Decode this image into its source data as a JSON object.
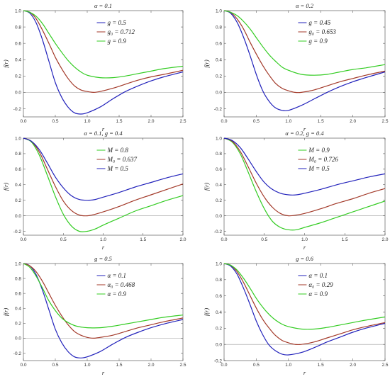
{
  "colors": {
    "blue": "#2222bb",
    "red": "#a33a2a",
    "green": "#33cc22"
  },
  "chart_data": [
    {
      "type": "line",
      "title": "α = 0.1",
      "xlabel": "r",
      "ylabel": "f(r)",
      "xlim": [
        0,
        2.5
      ],
      "ylim": [
        -0.3,
        1.0
      ],
      "xticks": [
        "0.0",
        "0.5",
        "1.0",
        "1.5",
        "2.0",
        "2.5"
      ],
      "yticks": [
        "-0.2",
        "0.0",
        "0.2",
        "0.4",
        "0.6",
        "0.8",
        "1.0"
      ],
      "legend_position": "top-right",
      "series": [
        {
          "name": "g = 0.5",
          "color": "#2222bb",
          "x": [
            0,
            0.1,
            0.2,
            0.3,
            0.4,
            0.5,
            0.6,
            0.7,
            0.8,
            0.9,
            1.0,
            1.2,
            1.4,
            1.6,
            1.8,
            2.0,
            2.2,
            2.5
          ],
          "y": [
            1.0,
            0.97,
            0.85,
            0.64,
            0.38,
            0.12,
            -0.06,
            -0.18,
            -0.25,
            -0.265,
            -0.25,
            -0.18,
            -0.08,
            0.01,
            0.08,
            0.14,
            0.19,
            0.25
          ]
        },
        {
          "name": "g₀ = 0.712",
          "color": "#a33a2a",
          "x": [
            0,
            0.1,
            0.2,
            0.3,
            0.4,
            0.5,
            0.6,
            0.7,
            0.8,
            0.9,
            1.0,
            1.1,
            1.2,
            1.4,
            1.6,
            1.8,
            2.0,
            2.2,
            2.5
          ],
          "y": [
            1.0,
            0.98,
            0.9,
            0.76,
            0.6,
            0.43,
            0.29,
            0.17,
            0.08,
            0.03,
            0.01,
            0.0,
            0.01,
            0.05,
            0.1,
            0.15,
            0.19,
            0.22,
            0.27
          ]
        },
        {
          "name": "g = 0.9",
          "color": "#33cc22",
          "x": [
            0,
            0.1,
            0.2,
            0.3,
            0.4,
            0.5,
            0.6,
            0.7,
            0.8,
            0.9,
            1.0,
            1.2,
            1.4,
            1.6,
            1.8,
            2.0,
            2.2,
            2.5
          ],
          "y": [
            1.0,
            0.98,
            0.93,
            0.84,
            0.72,
            0.6,
            0.49,
            0.39,
            0.31,
            0.25,
            0.21,
            0.18,
            0.18,
            0.2,
            0.23,
            0.26,
            0.29,
            0.32
          ]
        }
      ]
    },
    {
      "type": "line",
      "title": "α = 0.2",
      "xlabel": "r",
      "ylabel": "f(r)",
      "xlim": [
        0,
        2.5
      ],
      "ylim": [
        -0.3,
        1.0
      ],
      "xticks": [
        "0.0",
        "0.5",
        "1.0",
        "1.5",
        "2.0",
        "2.5"
      ],
      "yticks": [
        "-0.2",
        "0.0",
        "0.2",
        "0.4",
        "0.6",
        "0.8",
        "1.0"
      ],
      "legend_position": "top-right",
      "series": [
        {
          "name": "g = 0.45",
          "color": "#2222bb",
          "x": [
            0,
            0.1,
            0.2,
            0.3,
            0.4,
            0.5,
            0.6,
            0.7,
            0.8,
            0.9,
            1.0,
            1.2,
            1.4,
            1.6,
            1.8,
            2.0,
            2.2,
            2.5
          ],
          "y": [
            1.0,
            0.97,
            0.86,
            0.68,
            0.46,
            0.22,
            0.02,
            -0.11,
            -0.19,
            -0.22,
            -0.22,
            -0.16,
            -0.08,
            0.0,
            0.07,
            0.13,
            0.18,
            0.25
          ]
        },
        {
          "name": "g₀ = 0.653",
          "color": "#a33a2a",
          "x": [
            0,
            0.1,
            0.2,
            0.3,
            0.4,
            0.5,
            0.6,
            0.7,
            0.8,
            0.9,
            1.0,
            1.1,
            1.2,
            1.4,
            1.6,
            1.8,
            2.0,
            2.2,
            2.5
          ],
          "y": [
            1.0,
            0.98,
            0.9,
            0.78,
            0.62,
            0.47,
            0.33,
            0.21,
            0.11,
            0.05,
            0.02,
            0.0,
            0.0,
            0.03,
            0.08,
            0.13,
            0.17,
            0.21,
            0.26
          ]
        },
        {
          "name": "g = 0.9",
          "color": "#33cc22",
          "x": [
            0,
            0.1,
            0.2,
            0.3,
            0.4,
            0.5,
            0.6,
            0.7,
            0.8,
            0.9,
            1.0,
            1.2,
            1.4,
            1.6,
            1.8,
            2.0,
            2.2,
            2.5
          ],
          "y": [
            1.0,
            0.98,
            0.94,
            0.87,
            0.78,
            0.67,
            0.56,
            0.46,
            0.38,
            0.31,
            0.27,
            0.22,
            0.21,
            0.22,
            0.25,
            0.28,
            0.3,
            0.34
          ]
        }
      ]
    },
    {
      "type": "line",
      "title": "α = 0.1, g = 0.4",
      "xlabel": "r",
      "ylabel": "f(r)",
      "xlim": [
        0,
        2.0
      ],
      "ylim": [
        -0.25,
        1.0
      ],
      "xticks": [
        "0.0",
        "0.5",
        "1.0",
        "1.5",
        "2.0"
      ],
      "yticks": [
        "-0.2",
        "0.0",
        "0.2",
        "0.4",
        "0.6",
        "0.8",
        "1.0"
      ],
      "legend_position": "top-right",
      "series": [
        {
          "name": "M = 0.8",
          "color": "#33cc22",
          "x": [
            0,
            0.1,
            0.2,
            0.3,
            0.4,
            0.5,
            0.6,
            0.7,
            0.8,
            0.9,
            1.0,
            1.2,
            1.4,
            1.6,
            1.8,
            2.0
          ],
          "y": [
            1.0,
            0.95,
            0.78,
            0.52,
            0.25,
            0.02,
            -0.13,
            -0.2,
            -0.2,
            -0.17,
            -0.12,
            -0.03,
            0.06,
            0.13,
            0.2,
            0.26
          ]
        },
        {
          "name": "M₀ = 0.637",
          "color": "#a33a2a",
          "x": [
            0,
            0.1,
            0.2,
            0.3,
            0.4,
            0.5,
            0.6,
            0.7,
            0.8,
            0.9,
            1.0,
            1.2,
            1.4,
            1.6,
            1.8,
            2.0
          ],
          "y": [
            1.0,
            0.96,
            0.82,
            0.6,
            0.38,
            0.19,
            0.07,
            0.01,
            0.0,
            0.02,
            0.05,
            0.12,
            0.2,
            0.27,
            0.34,
            0.41
          ]
        },
        {
          "name": "M = 0.5",
          "color": "#2222bb",
          "x": [
            0,
            0.1,
            0.2,
            0.3,
            0.4,
            0.5,
            0.6,
            0.7,
            0.8,
            0.9,
            1.0,
            1.2,
            1.4,
            1.6,
            1.8,
            2.0
          ],
          "y": [
            1.0,
            0.96,
            0.85,
            0.68,
            0.5,
            0.36,
            0.26,
            0.21,
            0.2,
            0.21,
            0.24,
            0.3,
            0.37,
            0.43,
            0.49,
            0.54
          ]
        }
      ]
    },
    {
      "type": "line",
      "title": "α = 0.2, g = 0.4",
      "xlabel": "r",
      "ylabel": "f(r)",
      "xlim": [
        0,
        2.0
      ],
      "ylim": [
        -0.25,
        1.0
      ],
      "xticks": [
        "0.0",
        "0.5",
        "1.0",
        "1.5",
        "2.0"
      ],
      "yticks": [
        "-0.2",
        "0.0",
        "0.2",
        "0.4",
        "0.6",
        "0.8",
        "1.0"
      ],
      "legend_position": "top-right",
      "series": [
        {
          "name": "M = 0.9",
          "color": "#33cc22",
          "x": [
            0,
            0.1,
            0.2,
            0.3,
            0.4,
            0.5,
            0.6,
            0.7,
            0.8,
            0.9,
            1.0,
            1.2,
            1.4,
            1.6,
            1.8,
            2.0
          ],
          "y": [
            1.0,
            0.95,
            0.8,
            0.56,
            0.31,
            0.09,
            -0.07,
            -0.15,
            -0.18,
            -0.18,
            -0.15,
            -0.09,
            -0.02,
            0.05,
            0.12,
            0.19
          ]
        },
        {
          "name": "M₀ = 0.726",
          "color": "#a33a2a",
          "x": [
            0,
            0.1,
            0.2,
            0.3,
            0.4,
            0.5,
            0.6,
            0.7,
            0.8,
            0.9,
            1.0,
            1.2,
            1.4,
            1.6,
            1.8,
            2.0
          ],
          "y": [
            1.0,
            0.96,
            0.83,
            0.63,
            0.42,
            0.24,
            0.11,
            0.03,
            0.0,
            0.01,
            0.03,
            0.09,
            0.16,
            0.22,
            0.29,
            0.35
          ]
        },
        {
          "name": "M = 0.5",
          "color": "#2222bb",
          "x": [
            0,
            0.1,
            0.2,
            0.3,
            0.4,
            0.5,
            0.6,
            0.7,
            0.8,
            0.9,
            1.0,
            1.2,
            1.4,
            1.6,
            1.8,
            2.0
          ],
          "y": [
            1.0,
            0.97,
            0.88,
            0.73,
            0.57,
            0.43,
            0.34,
            0.29,
            0.27,
            0.27,
            0.29,
            0.34,
            0.4,
            0.45,
            0.5,
            0.54
          ]
        }
      ]
    },
    {
      "type": "line",
      "title": "g = 0.5",
      "xlabel": "r",
      "ylabel": "f(r)",
      "xlim": [
        0,
        2.5
      ],
      "ylim": [
        -0.3,
        1.0
      ],
      "xticks": [
        "0.0",
        "0.5",
        "1.0",
        "1.5",
        "2.0",
        "2.5"
      ],
      "yticks": [
        "-0.2",
        "0.0",
        "0.2",
        "0.4",
        "0.6",
        "0.8",
        "1.0"
      ],
      "legend_position": "top-right",
      "series": [
        {
          "name": "α = 0.1",
          "color": "#2222bb",
          "x": [
            0,
            0.1,
            0.2,
            0.3,
            0.4,
            0.5,
            0.6,
            0.7,
            0.8,
            0.9,
            1.0,
            1.2,
            1.4,
            1.6,
            1.8,
            2.0,
            2.2,
            2.5
          ],
          "y": [
            1.0,
            0.97,
            0.85,
            0.64,
            0.38,
            0.12,
            -0.06,
            -0.18,
            -0.25,
            -0.265,
            -0.25,
            -0.18,
            -0.08,
            0.01,
            0.08,
            0.14,
            0.19,
            0.25
          ]
        },
        {
          "name": "α₀ = 0.468",
          "color": "#a33a2a",
          "x": [
            0,
            0.1,
            0.2,
            0.3,
            0.4,
            0.5,
            0.6,
            0.7,
            0.8,
            0.9,
            1.0,
            1.1,
            1.2,
            1.4,
            1.6,
            1.8,
            2.0,
            2.2,
            2.5
          ],
          "y": [
            1.0,
            0.97,
            0.89,
            0.76,
            0.6,
            0.44,
            0.3,
            0.18,
            0.09,
            0.04,
            0.01,
            0.0,
            0.01,
            0.04,
            0.09,
            0.14,
            0.18,
            0.22,
            0.27
          ]
        },
        {
          "name": "α = 0.9",
          "color": "#33cc22",
          "x": [
            0,
            0.1,
            0.2,
            0.3,
            0.4,
            0.5,
            0.6,
            0.7,
            0.8,
            0.9,
            1.0,
            1.2,
            1.4,
            1.6,
            1.8,
            2.0,
            2.2,
            2.5
          ],
          "y": [
            1.0,
            0.95,
            0.83,
            0.67,
            0.5,
            0.37,
            0.27,
            0.21,
            0.17,
            0.15,
            0.14,
            0.14,
            0.16,
            0.19,
            0.22,
            0.25,
            0.28,
            0.31
          ]
        }
      ]
    },
    {
      "type": "line",
      "title": "g = 0.6",
      "xlabel": "r",
      "ylabel": "f(r)",
      "xlim": [
        0,
        2.5
      ],
      "ylim": [
        -0.2,
        1.0
      ],
      "xticks": [
        "0.0",
        "0.5",
        "1.0",
        "1.5",
        "2.0",
        "2.5"
      ],
      "yticks": [
        "-0.2",
        "0.0",
        "0.2",
        "0.4",
        "0.6",
        "0.8",
        "1.0"
      ],
      "legend_position": "top-right",
      "series": [
        {
          "name": "α = 0.1",
          "color": "#2222bb",
          "x": [
            0,
            0.1,
            0.2,
            0.3,
            0.4,
            0.5,
            0.6,
            0.7,
            0.8,
            0.9,
            1.0,
            1.2,
            1.4,
            1.6,
            1.8,
            2.0,
            2.2,
            2.5
          ],
          "y": [
            1.0,
            0.97,
            0.87,
            0.7,
            0.5,
            0.29,
            0.12,
            -0.01,
            -0.08,
            -0.12,
            -0.13,
            -0.1,
            -0.04,
            0.03,
            0.09,
            0.15,
            0.2,
            0.26
          ]
        },
        {
          "name": "α₀ = 0.29",
          "color": "#a33a2a",
          "x": [
            0,
            0.1,
            0.2,
            0.3,
            0.4,
            0.5,
            0.6,
            0.7,
            0.8,
            0.9,
            1.0,
            1.1,
            1.2,
            1.4,
            1.6,
            1.8,
            2.0,
            2.2,
            2.5
          ],
          "y": [
            1.0,
            0.98,
            0.9,
            0.77,
            0.61,
            0.45,
            0.31,
            0.2,
            0.11,
            0.05,
            0.02,
            0.0,
            0.0,
            0.03,
            0.08,
            0.13,
            0.18,
            0.22,
            0.27
          ]
        },
        {
          "name": "α = 0.9",
          "color": "#33cc22",
          "x": [
            0,
            0.1,
            0.2,
            0.3,
            0.4,
            0.5,
            0.6,
            0.7,
            0.8,
            0.9,
            1.0,
            1.2,
            1.4,
            1.6,
            1.8,
            2.0,
            2.2,
            2.5
          ],
          "y": [
            1.0,
            0.98,
            0.92,
            0.82,
            0.7,
            0.57,
            0.46,
            0.37,
            0.3,
            0.25,
            0.22,
            0.19,
            0.19,
            0.21,
            0.24,
            0.27,
            0.3,
            0.34
          ]
        }
      ]
    }
  ]
}
